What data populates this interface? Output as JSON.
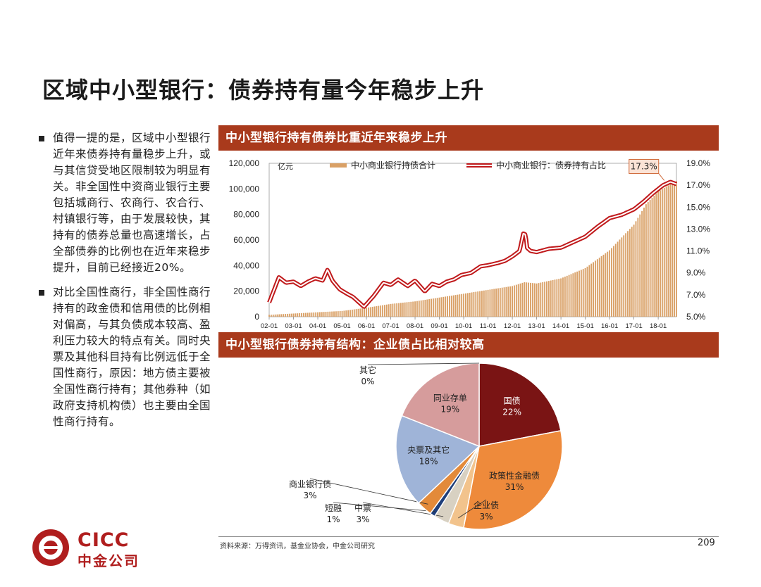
{
  "page": {
    "title": "区域中小型银行：债券持有量今年稳步上升",
    "bullets": [
      "值得一提的是，区域中小型银行近年来债券持有量稳步上升，或与其信贷受地区限制较为明显有关。非全国性中资商业银行主要包括城商行、农商行、农合行、村镇银行等，由于发展较快，其持有的债券总量也高速增长，占全部债券的比例也在近年来稳步提升，目前已经接近20%。",
      "对比全国性商行，非全国性商行持有的政金债和信用债的比例相对偏高，与其负债成本较高、盈利压力较大的特点有关。同时央票及其他科目持有比例远低于全国性商行，原因：地方债主要被全国性商行持有；其他券种（如政府支持机构债）也主要由全国性商行持有。"
    ],
    "source": "资料来源：万得资讯，基金业协会，中金公司研究",
    "page_number": "209",
    "logo_line1": "CICC",
    "logo_line2": "中金公司",
    "colors": {
      "header_bg": "#a93a1c",
      "logo": "#b01e1e"
    }
  },
  "chart_data": [
    {
      "type": "bar+line",
      "title": "中小型银行持有债券比重近年来稳步上升",
      "unit_label": "亿元",
      "legend": [
        "中小商业银行持债合计",
        "中小商业银行：债券持有占比"
      ],
      "legend_position": "top",
      "x_tick_labels": [
        "02-01",
        "03-01",
        "04-01",
        "05-01",
        "06-01",
        "07-01",
        "08-01",
        "09-01",
        "10-01",
        "11-01",
        "12-01",
        "13-01",
        "14-01",
        "15-01",
        "16-01",
        "17-01",
        "18-01"
      ],
      "x_range": [
        2002.0,
        2018.75
      ],
      "y_left": {
        "min": 0,
        "max": 120000,
        "ticks": [
          0,
          20000,
          40000,
          60000,
          80000,
          100000,
          120000
        ],
        "tick_labels": [
          "0",
          "20,000",
          "40,000",
          "60,000",
          "80,000",
          "100,000",
          "120,000"
        ]
      },
      "y_right": {
        "min": 5.0,
        "max": 19.0,
        "ticks": [
          5,
          7,
          9,
          11,
          13,
          15,
          17,
          19
        ],
        "tick_labels": [
          "5.0%",
          "7.0%",
          "9.0%",
          "11.0%",
          "13.0%",
          "15.0%",
          "17.0%",
          "19.0%"
        ]
      },
      "bar_series": {
        "name": "中小商业银行持债合计",
        "color": "#d9a066",
        "anchors_x": [
          2002.0,
          2003.0,
          2004.0,
          2005.0,
          2006.0,
          2007.0,
          2008.0,
          2009.0,
          2010.0,
          2011.0,
          2012.0,
          2012.5,
          2013.0,
          2014.0,
          2015.0,
          2016.0,
          2017.0,
          2017.5,
          2018.0,
          2018.7
        ],
        "anchors_y": [
          1500,
          2500,
          3500,
          4500,
          7000,
          10000,
          12000,
          15000,
          18000,
          21000,
          24000,
          27000,
          26000,
          30000,
          38000,
          52000,
          72000,
          88000,
          98000,
          106000
        ]
      },
      "line_series": {
        "name": "中小商业银行：债券持有占比",
        "color": "#c0191b",
        "anchors_x": [
          2002.0,
          2002.4,
          2002.7,
          2003.0,
          2003.3,
          2003.6,
          2003.9,
          2004.2,
          2004.4,
          2004.6,
          2004.9,
          2005.2,
          2005.45,
          2005.7,
          2005.9,
          2006.3,
          2006.7,
          2007.0,
          2007.3,
          2007.7,
          2008.0,
          2008.4,
          2008.7,
          2009.0,
          2009.3,
          2009.6,
          2009.9,
          2010.3,
          2010.7,
          2011.0,
          2011.4,
          2011.7,
          2012.0,
          2012.3,
          2012.45,
          2012.55,
          2012.6,
          2012.75,
          2013.0,
          2013.5,
          2014.0,
          2014.5,
          2015.0,
          2015.5,
          2016.0,
          2016.5,
          2017.0,
          2017.4,
          2017.8,
          2018.2,
          2018.5,
          2018.75
        ],
        "anchors_y": [
          6.3,
          8.6,
          8.1,
          8.2,
          7.8,
          8.2,
          8.5,
          8.3,
          9.3,
          8.3,
          7.5,
          7.1,
          6.8,
          6.3,
          5.9,
          6.9,
          8.1,
          7.9,
          8.4,
          7.8,
          8.3,
          7.3,
          8.0,
          7.8,
          8.2,
          8.4,
          8.8,
          9.0,
          9.6,
          9.7,
          9.9,
          10.1,
          10.5,
          11.0,
          12.6,
          12.5,
          11.3,
          11.0,
          10.9,
          11.2,
          11.3,
          11.8,
          12.3,
          13.2,
          14.0,
          14.3,
          14.8,
          15.5,
          16.3,
          17.0,
          17.3,
          17.1
        ]
      },
      "annotation": "17.3%"
    },
    {
      "type": "pie",
      "title": "中小型银行债券持有结构：企业债占比相对较高",
      "slices": [
        {
          "label": "国债",
          "value": 22,
          "display": "22%",
          "color": "#7a1414"
        },
        {
          "label": "政策性金融债",
          "value": 31,
          "display": "31%",
          "color": "#ee8a3b"
        },
        {
          "label": "企业债",
          "value": 3,
          "display": "3%",
          "color": "#f2c38c"
        },
        {
          "label": "中票",
          "value": 3,
          "display": "3%",
          "color": "#d8d1c2"
        },
        {
          "label": "短融",
          "value": 1,
          "display": "1%",
          "color": "#1f3f7a"
        },
        {
          "label": "商业银行债",
          "value": 3,
          "display": "3%",
          "color": "#e38a3a"
        },
        {
          "label": "央票及其它",
          "value": 18,
          "display": "18%",
          "color": "#9fb4d8"
        },
        {
          "label": "同业存单",
          "value": 19,
          "display": "19%",
          "color": "#d69c9c"
        },
        {
          "label": "其它",
          "value": 0,
          "display": "0%",
          "color": "#666666"
        }
      ]
    }
  ]
}
